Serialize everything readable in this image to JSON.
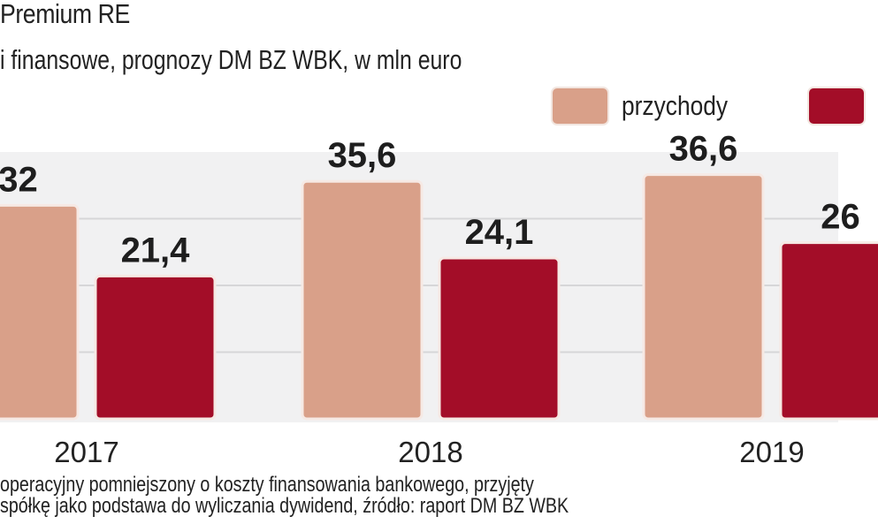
{
  "title": "Premium RE",
  "subtitle": "i finansowe, prognozy DM BZ WBK, w mln euro",
  "legend": [
    {
      "label": "przychody",
      "color": "#d9a089"
    },
    {
      "label": "",
      "color": "#a30d28"
    }
  ],
  "footnote": [
    "operacyjny pomniejszony o koszty finansowania bankowego, przyjęty",
    "spółkę jako podstawa do wyliczania dywidend, źródło: raport DM BZ WBK"
  ],
  "chart_data": {
    "type": "bar",
    "categories": [
      "2017",
      "2018",
      "2019"
    ],
    "series": [
      {
        "name": "przychody",
        "values": [
          32,
          35.6,
          36.6
        ],
        "labels": [
          "32",
          "35,6",
          "36,6"
        ],
        "color": "#d9a089"
      },
      {
        "values": [
          21.4,
          24.1,
          26.4
        ],
        "labels": [
          "21,4",
          "24,1",
          "26"
        ],
        "color": "#a30d28"
      }
    ],
    "ylim": [
      0,
      40
    ],
    "grid": true,
    "legend_position": "top-right"
  }
}
